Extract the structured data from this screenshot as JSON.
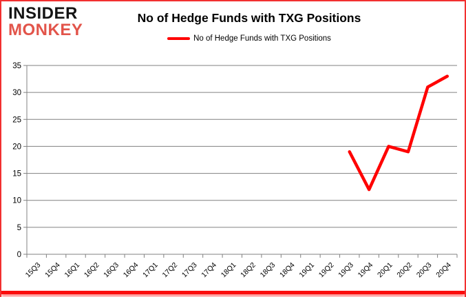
{
  "header": {
    "logo": {
      "line1": "INSIDER",
      "line2": "MONKEY"
    },
    "title": "No of Hedge Funds with TXG Positions",
    "legend_label": "No of Hedge Funds with TXG Positions"
  },
  "colors": {
    "line": "#ff0000",
    "logo_black": "#141414",
    "logo_red": "#e2544a",
    "grid": "#808080",
    "axis": "#808080",
    "tick_text": "#000000",
    "border": "#f23030"
  },
  "chart_data": {
    "type": "line",
    "title": "No of Hedge Funds with TXG Positions",
    "categories": [
      "15Q3",
      "15Q4",
      "16Q1",
      "16Q2",
      "16Q3",
      "16Q4",
      "17Q1",
      "17Q2",
      "17Q3",
      "17Q4",
      "18Q1",
      "18Q2",
      "18Q3",
      "18Q4",
      "19Q1",
      "19Q2",
      "19Q3",
      "19Q4",
      "20Q1",
      "20Q2",
      "20Q3",
      "20Q4"
    ],
    "series": [
      {
        "name": "No of Hedge Funds with TXG Positions",
        "values": [
          null,
          null,
          null,
          null,
          null,
          null,
          null,
          null,
          null,
          null,
          null,
          null,
          null,
          null,
          null,
          null,
          19,
          12,
          20,
          19,
          31,
          33
        ]
      }
    ],
    "xlabel": "",
    "ylabel": "",
    "ylim": [
      0,
      35
    ],
    "yticks": [
      0,
      5,
      10,
      15,
      20,
      25,
      30,
      35
    ],
    "grid": "horizontal",
    "legend_position": "top"
  }
}
